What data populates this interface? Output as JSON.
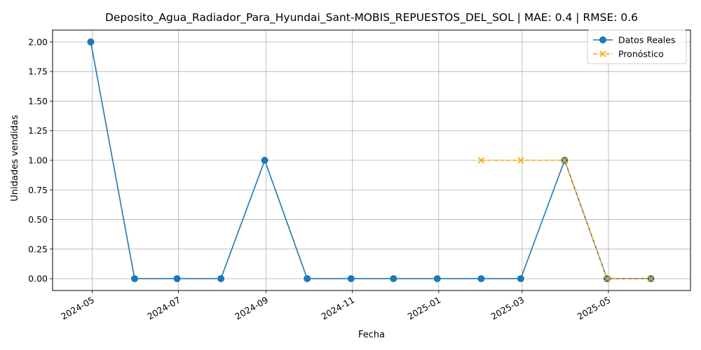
{
  "chart_data": {
    "type": "line",
    "title": "Deposito_Agua_Radiador_Para_Hyundai_Sant-MOBIS_REPUESTOS_DEL_SOL | MAE: 0.4 | RMSE: 0.6",
    "xlabel": "Fecha",
    "ylabel": "Unidades vendidas",
    "ylim": [
      -0.1,
      2.1
    ],
    "xlim": [
      "2024-04-03",
      "2025-06-28"
    ],
    "grid": true,
    "legend_position": "top-right",
    "x_ticks": [
      "2024-05",
      "2024-07",
      "2024-09",
      "2024-11",
      "2025-01",
      "2025-03",
      "2025-05"
    ],
    "y_ticks": [
      "0.00",
      "0.25",
      "0.50",
      "0.75",
      "1.00",
      "1.25",
      "1.50",
      "1.75",
      "2.00"
    ],
    "series": [
      {
        "name": "Datos Reales",
        "color": "#1f77b4",
        "marker": "circle",
        "line_style": "solid",
        "x": [
          "2024-04-30",
          "2024-05-31",
          "2024-06-30",
          "2024-07-31",
          "2024-08-31",
          "2024-09-30",
          "2024-10-31",
          "2024-11-30",
          "2024-12-31",
          "2025-01-31",
          "2025-02-28",
          "2025-03-31",
          "2025-04-30",
          "2025-05-31"
        ],
        "values": [
          2,
          0,
          0,
          0,
          1,
          0,
          0,
          0,
          0,
          0,
          0,
          1,
          0,
          0
        ]
      },
      {
        "name": "Pronóstico",
        "color": "#ffa500",
        "marker": "x",
        "line_style": "dashed",
        "x": [
          "2025-01-31",
          "2025-02-28",
          "2025-03-31",
          "2025-04-30",
          "2025-05-31"
        ],
        "values": [
          1,
          1,
          1,
          0,
          0
        ]
      }
    ]
  }
}
